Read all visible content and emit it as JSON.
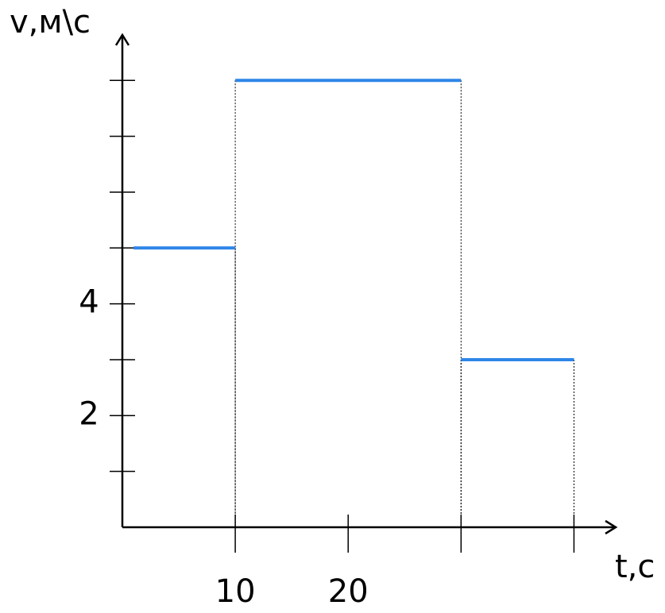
{
  "chart_data": {
    "type": "step",
    "x_label": "t,с",
    "y_label": "v,м\\с",
    "segments": [
      {
        "x": [
          1,
          10
        ],
        "y": 5
      },
      {
        "x": [
          10,
          30
        ],
        "y": 8
      },
      {
        "x": [
          30,
          40
        ],
        "y": 3
      }
    ],
    "color": "#2e86e8",
    "xlim": [
      0,
      43.7
    ],
    "ylim": [
      0,
      8.8
    ],
    "xticks": [
      10,
      20,
      {
        "value": 30,
        "label": null
      },
      {
        "value": 40,
        "label": null
      }
    ],
    "yticks": [
      {
        "value": 1,
        "label": null
      },
      2,
      {
        "value": 3,
        "label": null
      },
      4,
      {
        "value": 5,
        "label": null
      },
      {
        "value": 6,
        "label": null
      },
      {
        "value": 7,
        "label": null
      },
      {
        "value": 8,
        "label": null
      }
    ]
  }
}
